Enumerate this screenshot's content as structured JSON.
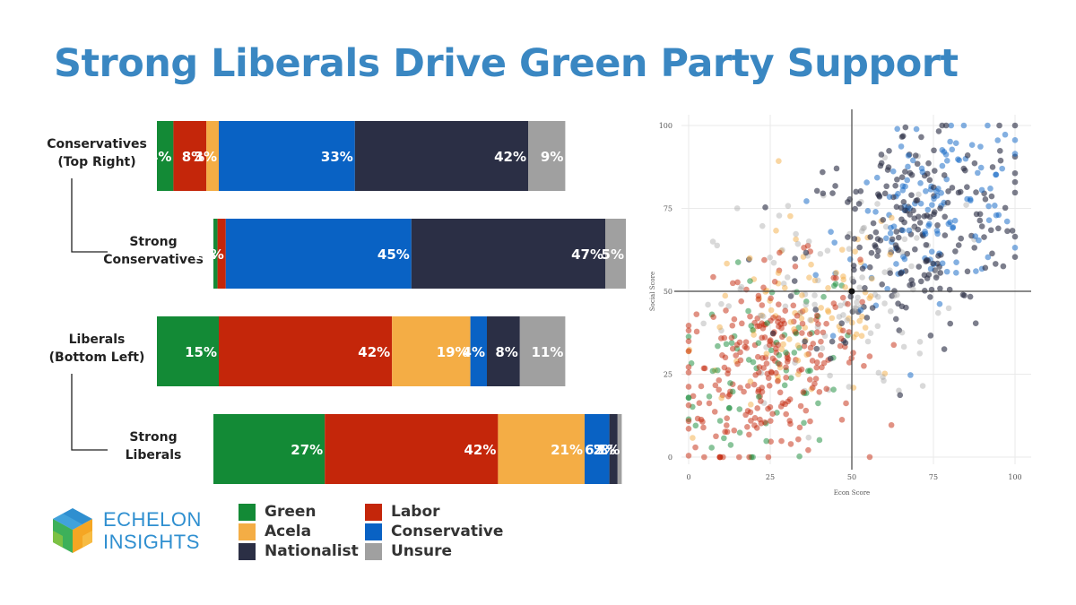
{
  "title": "Strong Liberals Drive Green Party Support",
  "colors": {
    "Green": "#138a36",
    "Labor": "#c4260a",
    "Acela": "#f4ad45",
    "Conservative": "#0962c4",
    "Nationalist": "#2b2f45",
    "Unsure": "#a0a0a0"
  },
  "legend": [
    {
      "label": "Green",
      "color": "#138a36"
    },
    {
      "label": "Acela",
      "color": "#f4ad45"
    },
    {
      "label": "Nationalist",
      "color": "#2b2f45"
    },
    {
      "label": "Labor",
      "color": "#c4260a"
    },
    {
      "label": "Conservative",
      "color": "#0962c4"
    },
    {
      "label": "Unsure",
      "color": "#a0a0a0"
    }
  ],
  "logo": {
    "line1": "ECHELON",
    "line2": "INSIGHTS"
  },
  "chart_data": [
    {
      "type": "bar",
      "orientation": "horizontal",
      "stacked": true,
      "categories": [
        "Conservatives (Top Right)",
        "Strong Conservatives",
        "Liberals (Bottom Left)",
        "Strong Liberals"
      ],
      "category_lines": [
        [
          "Conservatives",
          "(Top Right)"
        ],
        [
          "Strong",
          "Conservatives"
        ],
        [
          "Liberals",
          "(Bottom Left)"
        ],
        [
          "Strong",
          "Liberals"
        ]
      ],
      "series": [
        {
          "name": "Green",
          "values": [
            4,
            1,
            15,
            27
          ]
        },
        {
          "name": "Labor",
          "values": [
            8,
            2,
            42,
            42
          ]
        },
        {
          "name": "Acela",
          "values": [
            3,
            0,
            19,
            21
          ]
        },
        {
          "name": "Conservative",
          "values": [
            33,
            45,
            4,
            6
          ]
        },
        {
          "name": "Nationalist",
          "values": [
            42,
            47,
            8,
            2
          ]
        },
        {
          "name": "Unsure",
          "values": [
            9,
            5,
            11,
            1
          ]
        }
      ]
    },
    {
      "type": "scatter",
      "xlabel": "Econ Score",
      "ylabel": "Social Score",
      "xlim": [
        0,
        100
      ],
      "ylim": [
        0,
        100
      ],
      "xticks": [
        0,
        25,
        50,
        75,
        100
      ],
      "yticks": [
        0,
        25,
        50,
        75,
        100
      ],
      "reference_lines": {
        "x": 50,
        "y": 50
      },
      "groups": [
        {
          "name": "Green",
          "count": 75,
          "center": [
            24,
            26
          ],
          "spread": [
            14,
            14
          ]
        },
        {
          "name": "Labor",
          "count": 250,
          "center": [
            24,
            28
          ],
          "spread": [
            14,
            14
          ]
        },
        {
          "name": "Acela",
          "count": 90,
          "center": [
            35,
            42
          ],
          "spread": [
            17,
            15
          ]
        },
        {
          "name": "Conservative",
          "count": 130,
          "center": [
            76,
            75
          ],
          "spread": [
            14,
            12
          ]
        },
        {
          "name": "Nationalist",
          "count": 220,
          "center": [
            68,
            68
          ],
          "spread": [
            17,
            17
          ]
        },
        {
          "name": "Unsure",
          "count": 110,
          "center": [
            45,
            48
          ],
          "spread": [
            18,
            18
          ]
        }
      ]
    }
  ]
}
